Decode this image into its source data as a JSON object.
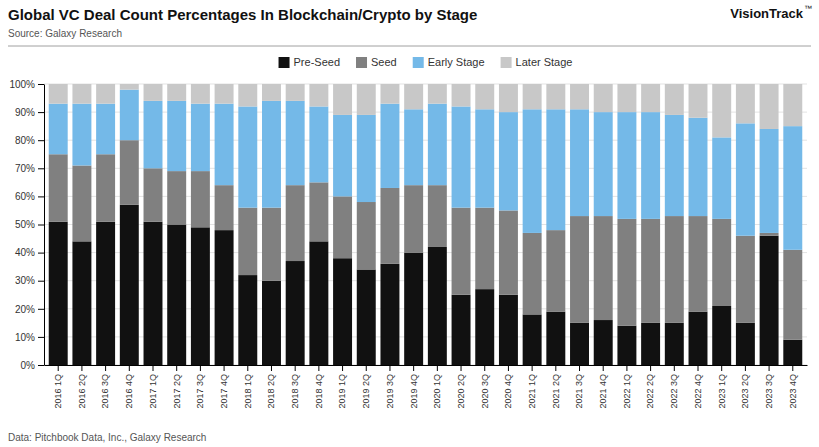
{
  "chart_data": {
    "type": "bar",
    "title": "Global VC Deal Count Percentages In Blockchain/Crypto by Stage",
    "subtitle": "Source: Galaxy Research",
    "annotations": [
      "VisionTrack",
      "™",
      "Data: Pitchbook Data, Inc., Galaxy Research"
    ],
    "categories": [
      "2016 1Q",
      "2016 2Q",
      "2016 3Q",
      "2016 4Q",
      "2017 1Q",
      "2017 2Q",
      "2017 3Q",
      "2017 4Q",
      "2018 1Q",
      "2018 2Q",
      "2018 3Q",
      "2018 4Q",
      "2019 1Q",
      "2019 2Q",
      "2019 3Q",
      "2019 4Q",
      "2020 1Q",
      "2020 2Q",
      "2020 3Q",
      "2020 4Q",
      "2021 1Q",
      "2021 2Q",
      "2021 3Q",
      "2021 4Q",
      "2022 1Q",
      "2022 2Q",
      "2022 3Q",
      "2022 4Q",
      "2023 1Q",
      "2023 2Q",
      "2023 3Q",
      "2023 4Q"
    ],
    "series": [
      {
        "name": "Pre-Seed",
        "color": "#111111",
        "values": [
          51,
          44,
          51,
          57,
          51,
          50,
          49,
          48,
          32,
          30,
          37,
          44,
          38,
          34,
          36,
          40,
          42,
          25,
          27,
          25,
          18,
          19,
          15,
          16,
          14,
          15,
          15,
          19,
          21,
          15,
          46,
          9
        ]
      },
      {
        "name": "Seed",
        "color": "#808080",
        "values": [
          24,
          27,
          24,
          23,
          19,
          19,
          20,
          16,
          24,
          26,
          27,
          21,
          22,
          24,
          27,
          24,
          22,
          31,
          29,
          30,
          29,
          29,
          38,
          37,
          38,
          37,
          38,
          34,
          31,
          31,
          1,
          32
        ]
      },
      {
        "name": "Early Stage",
        "color": "#74b9e8",
        "values": [
          18,
          22,
          18,
          18,
          24,
          25,
          24,
          29,
          36,
          38,
          30,
          27,
          29,
          31,
          30,
          27,
          29,
          36,
          35,
          35,
          44,
          43,
          38,
          37,
          38,
          38,
          36,
          35,
          29,
          40,
          37,
          44
        ]
      },
      {
        "name": "Later Stage",
        "color": "#c8c8c8",
        "values": [
          7,
          7,
          7,
          2,
          6,
          6,
          7,
          7,
          8,
          6,
          6,
          8,
          11,
          11,
          7,
          9,
          7,
          8,
          9,
          10,
          9,
          9,
          9,
          10,
          10,
          10,
          11,
          12,
          19,
          14,
          16,
          15
        ]
      }
    ],
    "stacked": true,
    "ylim": [
      0,
      100
    ],
    "yticks": [
      {
        "value": 0,
        "label": "0%"
      },
      {
        "value": 10,
        "label": "10%"
      },
      {
        "value": 20,
        "label": "20%"
      },
      {
        "value": 30,
        "label": "30%"
      },
      {
        "value": 40,
        "label": "40%"
      },
      {
        "value": 50,
        "label": "50%"
      },
      {
        "value": 60,
        "label": "60%"
      },
      {
        "value": 70,
        "label": "70%"
      },
      {
        "value": 80,
        "label": "80%"
      },
      {
        "value": 90,
        "label": "90%"
      },
      {
        "value": 100,
        "label": "100%"
      }
    ],
    "grid": true,
    "legend": "top"
  }
}
